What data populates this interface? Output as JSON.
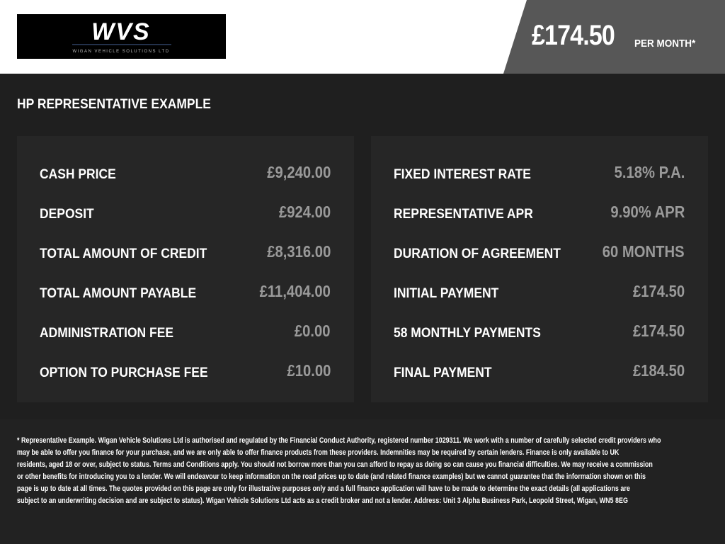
{
  "header": {
    "logo_text": "WVS",
    "logo_subtext": "WIGAN VEHICLE SOLUTIONS LTD",
    "monthly_price": "£174.50",
    "per_month_label": "PER MONTH*"
  },
  "section_title": "HP REPRESENTATIVE EXAMPLE",
  "left_panel": [
    {
      "label": "CASH PRICE",
      "value": "£9,240.00"
    },
    {
      "label": "DEPOSIT",
      "value": "£924.00"
    },
    {
      "label": "TOTAL AMOUNT OF CREDIT",
      "value": "£8,316.00"
    },
    {
      "label": "TOTAL AMOUNT PAYABLE",
      "value": "£11,404.00"
    },
    {
      "label": "ADMINISTRATION FEE",
      "value": "£0.00"
    },
    {
      "label": "OPTION TO PURCHASE FEE",
      "value": "£10.00"
    }
  ],
  "right_panel": [
    {
      "label": "FIXED INTEREST RATE",
      "value": "5.18% P.A."
    },
    {
      "label": "REPRESENTATIVE APR",
      "value": "9.90% APR"
    },
    {
      "label": "DURATION OF AGREEMENT",
      "value": "60 MONTHS"
    },
    {
      "label": "INITIAL PAYMENT",
      "value": "£174.50"
    },
    {
      "label": "58 MONTHLY PAYMENTS",
      "value": "£174.50"
    },
    {
      "label": "FINAL PAYMENT",
      "value": "£184.50"
    }
  ],
  "disclaimer_lines": [
    "* Representative Example. Wigan Vehicle Solutions Ltd is authorised and regulated by the Financial Conduct Authority, registered number 1029311. We work with a number of carefully selected credit providers who",
    "may be able to offer you finance for your purchase, and we are only able to offer finance products from these providers. Indemnities may be required by certain lenders. Finance is only available to UK",
    "residents, aged 18 or over, subject to status. Terms and Conditions apply. You should not borrow more than you can afford to repay as doing so can cause you financial difficulties. We may receive a commission",
    "or other benefits for introducing you to a lender. We will endeavour to keep information on the road prices up to date (and related finance examples) but we cannot guarantee that the information shown on this",
    "page is up to date at all times. The quotes provided on this page are only for illustrative purposes only and a full finance application will have to be made to determine the exact details (all applications are",
    "subject to an underwriting decision and are subject to status). Wigan Vehicle Solutions Ltd acts as a credit broker and not a lender. Address: Unit 3 Alpha Business Park, Leopold Street, Wigan, WN5 8EG"
  ]
}
